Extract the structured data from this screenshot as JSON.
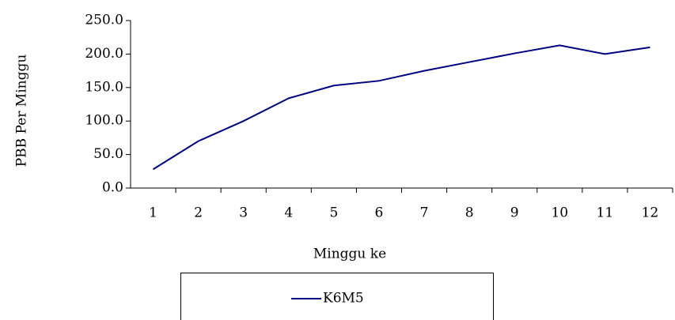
{
  "chart_data": {
    "type": "line",
    "x_label": "Minggu ke",
    "y_label": "PBB Per Minggu",
    "categories": [
      "1",
      "2",
      "3",
      "4",
      "5",
      "6",
      "7",
      "8",
      "9",
      "10",
      "11",
      "12"
    ],
    "series": [
      {
        "name": "K6M5",
        "color": "#000080",
        "values": [
          28,
          70,
          100,
          134,
          153,
          160,
          175,
          188,
          201,
          213,
          200,
          210
        ]
      }
    ],
    "ylim": [
      0,
      250
    ],
    "yticks": [
      {
        "value": 0,
        "label": "0.0"
      },
      {
        "value": 50,
        "label": "50.0"
      },
      {
        "value": 100,
        "label": "100.0"
      },
      {
        "value": 150,
        "label": "150.0"
      },
      {
        "value": 200,
        "label": "200.0"
      },
      {
        "value": 250,
        "label": "250.0"
      }
    ],
    "grid": false,
    "legend": "bottom"
  }
}
